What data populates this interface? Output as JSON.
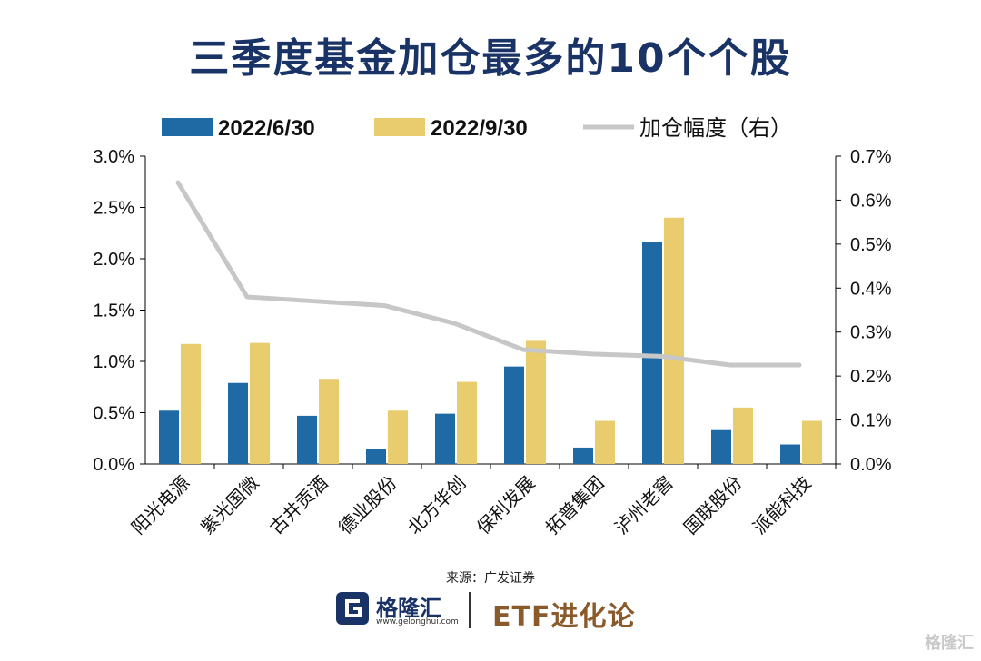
{
  "title": "三季度基金加仓最多的10个个股",
  "source": "来源：广发证券",
  "footer": {
    "logo_name": "格隆汇",
    "logo_url": "www.gelonghui.com",
    "brand": "ETF进化论",
    "watermark": "格隆汇"
  },
  "colors": {
    "title": "#1a3366",
    "series_1": "#1f6aa5",
    "series_2": "#e8cc6e",
    "series_3": "#c7c7c7"
  },
  "chart_data": {
    "type": "bar",
    "categories": [
      "阳光电源",
      "紫光国微",
      "古井贡酒",
      "德业股份",
      "北方华创",
      "保利发展",
      "拓普集团",
      "泸州老窖",
      "国联股份",
      "派能科技"
    ],
    "series": [
      {
        "name": "2022/6/30",
        "type": "bar",
        "axis": "left",
        "values": [
          0.52,
          0.79,
          0.47,
          0.15,
          0.49,
          0.95,
          0.16,
          2.16,
          0.33,
          0.19
        ]
      },
      {
        "name": "2022/9/30",
        "type": "bar",
        "axis": "left",
        "values": [
          1.17,
          1.18,
          0.83,
          0.52,
          0.8,
          1.2,
          0.42,
          2.4,
          0.55,
          0.42
        ]
      },
      {
        "name": "加仓幅度（右）",
        "type": "line",
        "axis": "right",
        "values": [
          0.64,
          0.38,
          0.37,
          0.36,
          0.32,
          0.26,
          0.25,
          0.245,
          0.225,
          0.225
        ]
      }
    ],
    "left_axis": {
      "ylim": [
        0,
        3.0
      ],
      "ticks": [
        "0.0%",
        "0.5%",
        "1.0%",
        "1.5%",
        "2.0%",
        "2.5%",
        "3.0%"
      ]
    },
    "right_axis": {
      "ylim": [
        0,
        0.7
      ],
      "ticks": [
        "0.0%",
        "0.1%",
        "0.2%",
        "0.3%",
        "0.4%",
        "0.5%",
        "0.6%",
        "0.7%"
      ]
    },
    "legend_position": "top",
    "grid": false
  }
}
